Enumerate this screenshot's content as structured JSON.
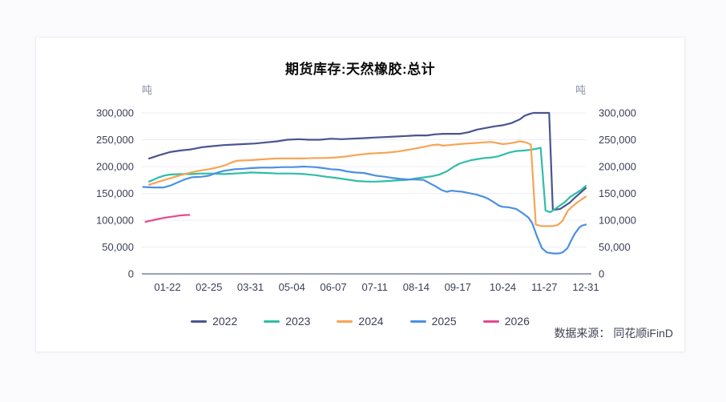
{
  "page": {
    "title": "期货库存:天然橡胶:总计",
    "source_label": "数据来源： 同花顺iFinD"
  },
  "chart_data": {
    "type": "line",
    "title": "期货库存:天然橡胶:总计",
    "unit_label": "吨",
    "grid": true,
    "legend_position": "bottom",
    "colors": {
      "grid": "#ecedf4",
      "axis": "#9ba2b8",
      "tick_text": "#3b3f58",
      "unit_text": "#8b90a3"
    },
    "y_axis": {
      "min": 0,
      "max": 300000,
      "step": 50000,
      "tick_values": [
        0,
        50000,
        100000,
        150000,
        200000,
        250000,
        300000
      ],
      "tick_labels": [
        "0",
        "50,000",
        "100,000",
        "150,000",
        "200,000",
        "250,000",
        "300,000"
      ]
    },
    "x_axis_note": "x values are day-of-year (1-365), weekly observations",
    "x_ticks": [
      {
        "day": 22,
        "label": "01-22"
      },
      {
        "day": 56,
        "label": "02-25"
      },
      {
        "day": 90,
        "label": "03-31"
      },
      {
        "day": 124,
        "label": "05-04"
      },
      {
        "day": 158,
        "label": "06-07"
      },
      {
        "day": 192,
        "label": "07-11"
      },
      {
        "day": 226,
        "label": "08-14"
      },
      {
        "day": 260,
        "label": "09-17"
      },
      {
        "day": 297,
        "label": "10-24"
      },
      {
        "day": 331,
        "label": "11-27"
      },
      {
        "day": 365,
        "label": "12-31"
      }
    ],
    "series": [
      {
        "name": "2022",
        "color": "#4a5490",
        "x": [
          7,
          15,
          24,
          33,
          41,
          50,
          59,
          68,
          77,
          85,
          94,
          103,
          112,
          120,
          130,
          138,
          147,
          156,
          165,
          173,
          183,
          191,
          200,
          209,
          218,
          226,
          235,
          241,
          248,
          262,
          269,
          276,
          283,
          290,
          297,
          304,
          311,
          315,
          319,
          322,
          335,
          338,
          344,
          348,
          352,
          356,
          361,
          365
        ],
        "y": [
          215000,
          221000,
          227000,
          230000,
          232000,
          236000,
          238000,
          240000,
          241000,
          242000,
          243000,
          245000,
          247000,
          250000,
          251000,
          250000,
          250000,
          252000,
          251000,
          252000,
          253000,
          254000,
          255000,
          256000,
          257000,
          258000,
          258000,
          260000,
          261000,
          261000,
          264000,
          269000,
          272000,
          275000,
          277000,
          281000,
          288000,
          295000,
          298000,
          300000,
          300000,
          119000,
          121000,
          127000,
          133000,
          142000,
          152000,
          160000
        ]
      },
      {
        "name": "2023",
        "color": "#2fbda7",
        "x": [
          7,
          11,
          15,
          19,
          24,
          33,
          41,
          50,
          59,
          68,
          77,
          85,
          90,
          103,
          112,
          125,
          134,
          143,
          152,
          160,
          169,
          178,
          187,
          193,
          202,
          209,
          218,
          226,
          233,
          239,
          245,
          251,
          257,
          262,
          271,
          282,
          288,
          293,
          297,
          302,
          308,
          315,
          319,
          324,
          328,
          332,
          336,
          341,
          348,
          352,
          356,
          361,
          365
        ],
        "y": [
          172000,
          176000,
          180000,
          183000,
          185000,
          186000,
          186000,
          187000,
          187000,
          186000,
          187000,
          188000,
          189000,
          188000,
          187000,
          187000,
          186000,
          184000,
          181000,
          179000,
          176000,
          173000,
          172000,
          172000,
          173000,
          174000,
          175000,
          178000,
          180000,
          182000,
          185000,
          191000,
          200000,
          206000,
          212000,
          216000,
          217000,
          219000,
          222000,
          226000,
          229000,
          230000,
          231000,
          233000,
          235000,
          118000,
          115000,
          123000,
          134000,
          143000,
          149000,
          156000,
          164000
        ]
      },
      {
        "name": "2024",
        "color": "#f7a456",
        "x": [
          7,
          15,
          24,
          33,
          41,
          50,
          56,
          64,
          70,
          76,
          80,
          90,
          103,
          112,
          125,
          134,
          143,
          152,
          160,
          169,
          178,
          187,
          193,
          202,
          211,
          219,
          226,
          233,
          239,
          244,
          248,
          253,
          262,
          268,
          275,
          282,
          287,
          292,
          297,
          302,
          307,
          311,
          316,
          320,
          324,
          329,
          337,
          342,
          346,
          350,
          354,
          358,
          365
        ],
        "y": [
          166000,
          172000,
          178000,
          184000,
          189000,
          193000,
          195000,
          199000,
          203000,
          209000,
          211000,
          212000,
          214000,
          215000,
          215000,
          215000,
          216000,
          216000,
          217000,
          219000,
          222000,
          224000,
          225000,
          226000,
          228000,
          231000,
          234000,
          237000,
          240000,
          241000,
          239000,
          240000,
          242000,
          243000,
          244000,
          245000,
          246000,
          244000,
          242000,
          243000,
          245000,
          247000,
          245000,
          241000,
          92000,
          89000,
          89000,
          91000,
          99000,
          117000,
          126000,
          133000,
          144000
        ]
      },
      {
        "name": "2025",
        "color": "#4b90e2",
        "x": [
          2,
          11,
          19,
          25,
          31,
          36,
          42,
          50,
          56,
          62,
          68,
          77,
          85,
          90,
          99,
          108,
          116,
          125,
          134,
          143,
          150,
          156,
          163,
          169,
          176,
          183,
          189,
          193,
          200,
          206,
          213,
          220,
          226,
          232,
          237,
          242,
          247,
          251,
          255,
          259,
          264,
          268,
          275,
          282,
          285,
          290,
          294,
          297,
          302,
          308,
          312,
          315,
          318,
          321,
          325,
          329,
          333,
          338,
          343,
          346,
          350,
          353,
          356,
          360,
          362,
          365
        ],
        "y": [
          162000,
          161000,
          161000,
          165000,
          171000,
          176000,
          180000,
          181000,
          183000,
          188000,
          192000,
          195000,
          196000,
          197000,
          198000,
          198000,
          199000,
          199000,
          200000,
          199000,
          197000,
          195000,
          194000,
          191000,
          189000,
          188000,
          185000,
          183000,
          181000,
          179000,
          177000,
          176000,
          176000,
          175000,
          169000,
          163000,
          156000,
          153000,
          155000,
          154000,
          153000,
          151000,
          148000,
          143000,
          140000,
          133000,
          127000,
          125000,
          124000,
          121000,
          115000,
          110000,
          105000,
          95000,
          70000,
          48000,
          40000,
          38000,
          38000,
          40000,
          48000,
          62000,
          75000,
          87000,
          90000,
          92000
        ]
      },
      {
        "name": "2026",
        "color": "#e5488f",
        "x": [
          4,
          9,
          13,
          17,
          22,
          27,
          31,
          36,
          40
        ],
        "y": [
          97000,
          99500,
          101500,
          103500,
          105500,
          107000,
          108500,
          109500,
          110000
        ]
      }
    ]
  }
}
